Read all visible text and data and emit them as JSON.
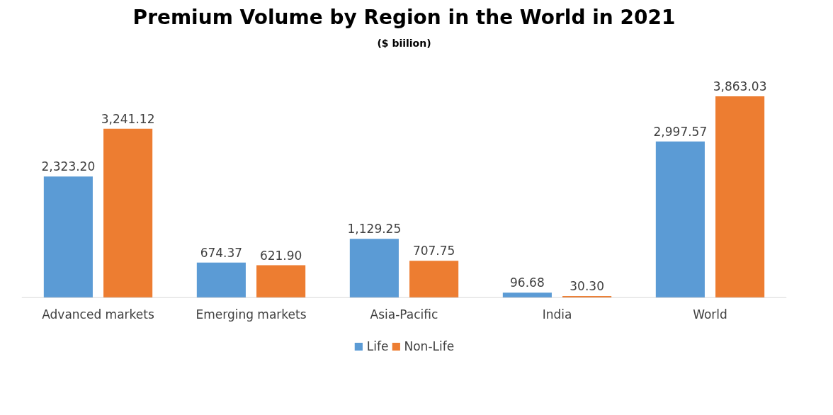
{
  "chart_data": {
    "type": "bar",
    "title": "Premium Volume by Region in the World in 2021",
    "subtitle": "($ biilion)",
    "categories": [
      "Advanced markets",
      "Emerging markets",
      "Asia-Pacific",
      "India",
      "World"
    ],
    "series": [
      {
        "name": "Life",
        "color": "#5b9bd5",
        "values": [
          2323.2,
          674.37,
          1129.25,
          96.68,
          2997.57
        ],
        "value_labels": [
          "2,323.20",
          "674.37",
          "1,129.25",
          "96.68",
          "2,997.57"
        ]
      },
      {
        "name": "Non-Life",
        "color": "#ed7d31",
        "values": [
          3241.12,
          621.9,
          707.75,
          30.3,
          3863.03
        ],
        "value_labels": [
          "3,241.12",
          "621.90",
          "707.75",
          "30.30",
          "3,863.03"
        ]
      }
    ],
    "legend": "bottom",
    "grid": false
  }
}
